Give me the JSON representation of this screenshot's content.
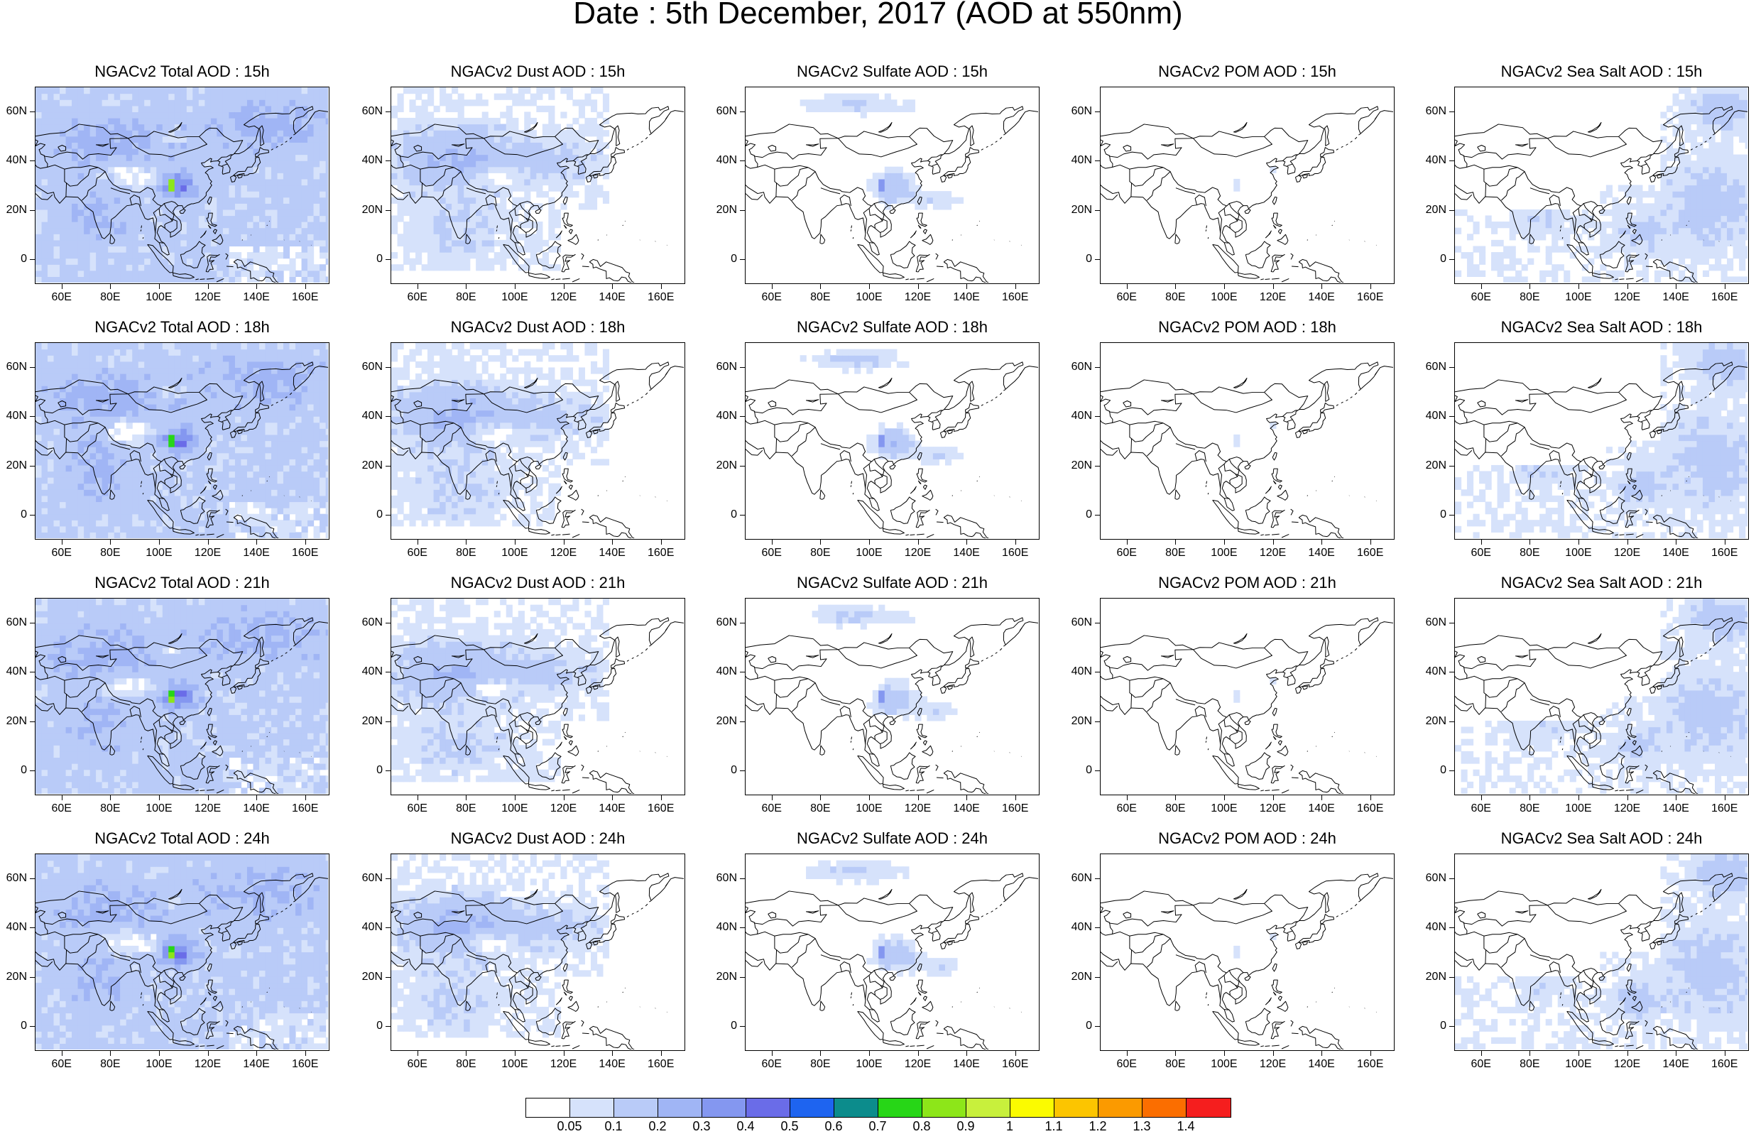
{
  "title": "Date : 5th December, 2017 (AOD at 550nm)",
  "map": {
    "lon_range": [
      49,
      170
    ],
    "lat_range": [
      -10,
      70
    ],
    "x_ticks": [
      "60E",
      "80E",
      "100E",
      "120E",
      "140E",
      "160E"
    ],
    "x_tick_values": [
      60,
      80,
      100,
      120,
      140,
      160
    ],
    "y_ticks": [
      "60N",
      "40N",
      "20N",
      "0"
    ],
    "y_tick_values": [
      60,
      40,
      20,
      0
    ]
  },
  "panels": [
    {
      "title": "NGACv2 Total AOD : 15h",
      "variable": "total",
      "hour": "15h"
    },
    {
      "title": "NGACv2 Dust AOD : 15h",
      "variable": "dust",
      "hour": "15h"
    },
    {
      "title": "NGACv2 Sulfate AOD : 15h",
      "variable": "sulfate",
      "hour": "15h"
    },
    {
      "title": "NGACv2 POM AOD : 15h",
      "variable": "pom",
      "hour": "15h"
    },
    {
      "title": "NGACv2 Sea Salt AOD : 15h",
      "variable": "seasalt",
      "hour": "15h"
    },
    {
      "title": "NGACv2 Total AOD : 18h",
      "variable": "total",
      "hour": "18h"
    },
    {
      "title": "NGACv2 Dust AOD : 18h",
      "variable": "dust",
      "hour": "18h"
    },
    {
      "title": "NGACv2 Sulfate AOD : 18h",
      "variable": "sulfate",
      "hour": "18h"
    },
    {
      "title": "NGACv2 POM AOD : 18h",
      "variable": "pom",
      "hour": "18h"
    },
    {
      "title": "NGACv2 Sea Salt AOD : 18h",
      "variable": "seasalt",
      "hour": "18h"
    },
    {
      "title": "NGACv2 Total AOD : 21h",
      "variable": "total",
      "hour": "21h"
    },
    {
      "title": "NGACv2 Dust AOD : 21h",
      "variable": "dust",
      "hour": "21h"
    },
    {
      "title": "NGACv2 Sulfate AOD : 21h",
      "variable": "sulfate",
      "hour": "21h"
    },
    {
      "title": "NGACv2 POM AOD : 21h",
      "variable": "pom",
      "hour": "21h"
    },
    {
      "title": "NGACv2 Sea Salt AOD : 21h",
      "variable": "seasalt",
      "hour": "21h"
    },
    {
      "title": "NGACv2 Total AOD : 24h",
      "variable": "total",
      "hour": "24h"
    },
    {
      "title": "NGACv2 Dust AOD : 24h",
      "variable": "dust",
      "hour": "24h"
    },
    {
      "title": "NGACv2 Sulfate AOD : 24h",
      "variable": "sulfate",
      "hour": "24h"
    },
    {
      "title": "NGACv2 POM AOD : 24h",
      "variable": "pom",
      "hour": "24h"
    },
    {
      "title": "NGACv2 Sea Salt  AOD : 24h",
      "variable": "seasalt",
      "hour": "24h"
    }
  ],
  "colorbar": {
    "labels": [
      "0.05",
      "0.1",
      "0.2",
      "0.3",
      "0.4",
      "0.5",
      "0.6",
      "0.7",
      "0.8",
      "0.9",
      "1",
      "1.1",
      "1.2",
      "1.3",
      "1.4"
    ],
    "colors": [
      "#ffffff",
      "#d6e2fb",
      "#b9cbf8",
      "#a0b5f5",
      "#8497f0",
      "#6a6ce8",
      "#1e64f0",
      "#0c8c8c",
      "#27d617",
      "#8de619",
      "#c8f03c",
      "#fbfb00",
      "#fcc500",
      "#fb9a00",
      "#fb6e00",
      "#f51e1e"
    ]
  }
}
